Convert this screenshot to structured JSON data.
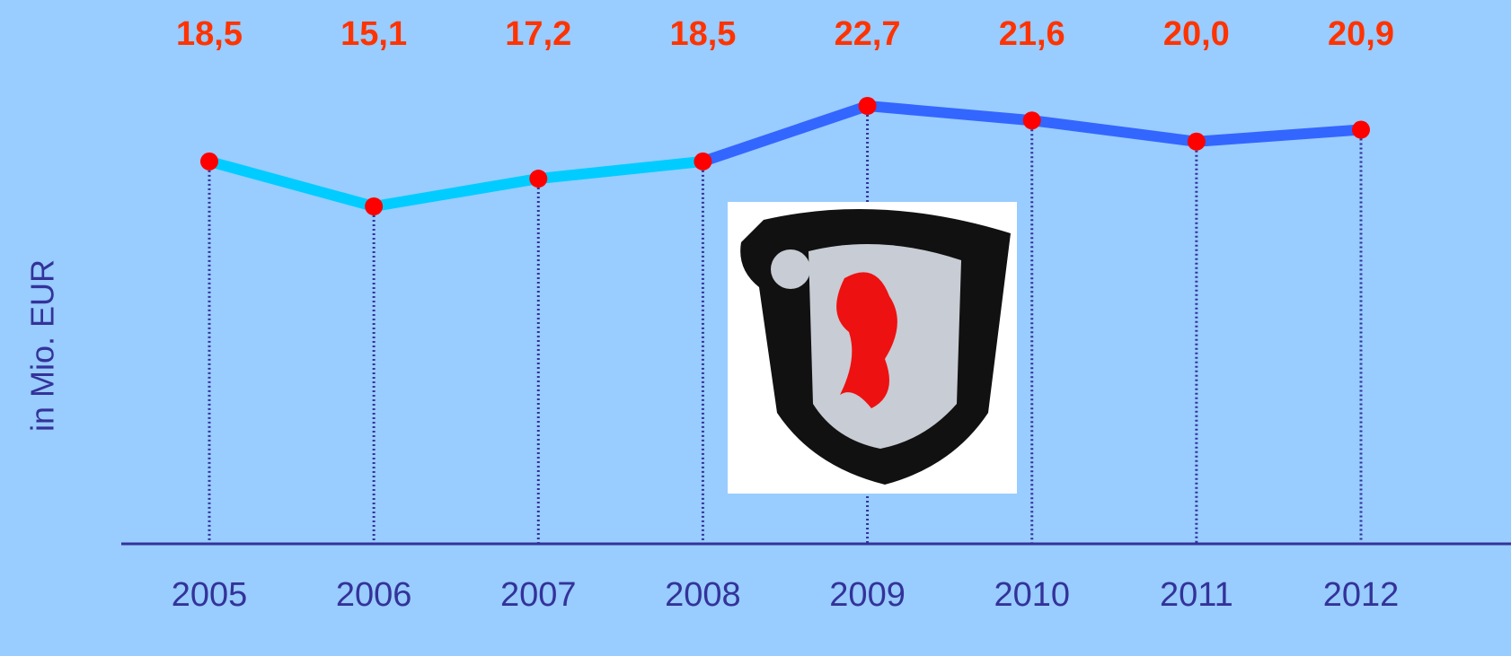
{
  "chart_data": {
    "type": "line",
    "y_label": "in Mio. EUR",
    "categories": [
      "2005",
      "2006",
      "2007",
      "2008",
      "2009",
      "2010",
      "2011",
      "2012"
    ],
    "values": [
      18.5,
      15.1,
      17.2,
      18.5,
      22.7,
      21.6,
      20.0,
      20.9
    ],
    "value_labels": [
      "18,5",
      "15,1",
      "17,2",
      "18,5",
      "22,7",
      "21,6",
      "20,0",
      "20,9"
    ],
    "segment_colors": [
      "#00ccff",
      "#00ccff",
      "#00ccff",
      "#3366ff",
      "#3366ff",
      "#3366ff",
      "#3366ff"
    ],
    "marker_color": "#ff0000",
    "value_label_color": "#ff3300"
  }
}
